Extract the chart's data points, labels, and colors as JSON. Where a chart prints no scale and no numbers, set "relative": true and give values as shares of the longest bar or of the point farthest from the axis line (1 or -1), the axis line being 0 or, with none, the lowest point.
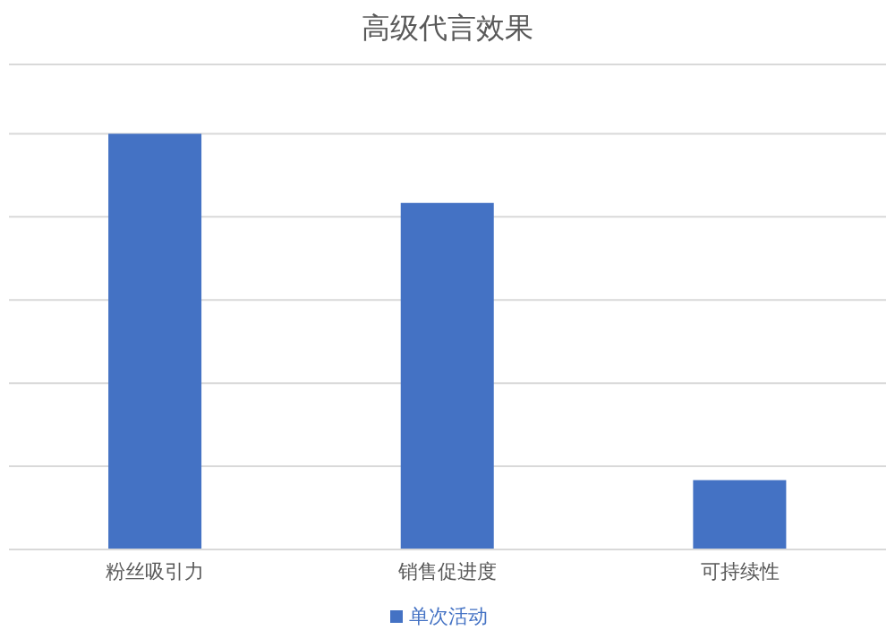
{
  "chart_data": {
    "type": "bar",
    "title": "高级代言效果",
    "categories": [
      "粉丝吸引力",
      "销售促进度",
      "可持续性"
    ],
    "relative": true,
    "series": [
      {
        "name": "单次活动",
        "color": "#4472c4",
        "values": [
          1,
          0.8333,
          0.1667
        ]
      }
    ],
    "grid": "y",
    "legend": "bottom"
  }
}
